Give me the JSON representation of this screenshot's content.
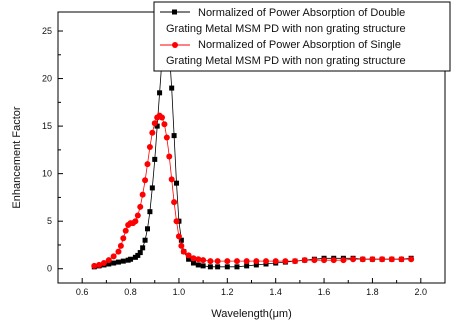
{
  "chart_data": {
    "type": "scatter",
    "title": "",
    "xlabel": "Wavelength(μm)",
    "ylabel": "Enhancement Factor",
    "xlim": [
      0.5,
      2.1
    ],
    "ylim": [
      -1.5,
      27
    ],
    "xticks": [
      0.6,
      0.8,
      1.0,
      1.2,
      1.4,
      1.6,
      1.8,
      2.0
    ],
    "xtick_labels": [
      "0.6",
      "0.8",
      "1.0",
      "1.2",
      "1.4",
      "1.6",
      "1.8",
      "2.0"
    ],
    "yticks": [
      0,
      5,
      10,
      15,
      20,
      25
    ],
    "ytick_labels": [
      "0",
      "5",
      "10",
      "15",
      "20",
      "25"
    ],
    "legend_position": "top-right",
    "grid": false,
    "series": [
      {
        "name_line1": "Normalized of Power Absorption of Double",
        "name_line2": "Grating Metal  MSM PD with non grating structure",
        "color": "#000000",
        "marker": "square",
        "x": [
          0.65,
          0.67,
          0.69,
          0.71,
          0.73,
          0.75,
          0.77,
          0.79,
          0.8,
          0.82,
          0.83,
          0.84,
          0.85,
          0.86,
          0.87,
          0.88,
          0.89,
          0.9,
          0.91,
          0.92,
          0.93,
          0.94,
          0.945,
          0.95,
          0.955,
          0.96,
          0.97,
          0.98,
          0.99,
          1.0,
          1.01,
          1.02,
          1.04,
          1.06,
          1.08,
          1.1,
          1.13,
          1.16,
          1.2,
          1.24,
          1.28,
          1.32,
          1.36,
          1.4,
          1.44,
          1.48,
          1.52,
          1.56,
          1.6,
          1.64,
          1.68,
          1.72,
          1.76,
          1.8,
          1.84,
          1.88,
          1.92,
          1.96
        ],
        "y": [
          0.2,
          0.3,
          0.4,
          0.5,
          0.6,
          0.7,
          0.8,
          0.9,
          1.0,
          1.2,
          1.4,
          1.7,
          2.2,
          3.0,
          4.2,
          6.0,
          8.5,
          11.5,
          15.0,
          18.5,
          22.0,
          24.3,
          25.0,
          24.8,
          24.0,
          22.8,
          19.0,
          14.0,
          9.0,
          5.0,
          3.0,
          1.8,
          1.0,
          0.6,
          0.4,
          0.3,
          0.2,
          0.2,
          0.2,
          0.2,
          0.3,
          0.4,
          0.5,
          0.6,
          0.7,
          0.8,
          0.9,
          1.0,
          1.1,
          1.1,
          1.1,
          1.1,
          1.0,
          1.0,
          1.0,
          1.0,
          1.0,
          1.1
        ]
      },
      {
        "name_line1": "Normalized of Power Absorption of Single",
        "name_line2": "Grating Metal  MSM PD with non grating structure",
        "color": "#ff0000",
        "marker": "circle",
        "x": [
          0.65,
          0.67,
          0.69,
          0.71,
          0.73,
          0.75,
          0.76,
          0.77,
          0.78,
          0.79,
          0.8,
          0.81,
          0.82,
          0.83,
          0.84,
          0.85,
          0.86,
          0.87,
          0.88,
          0.89,
          0.9,
          0.91,
          0.92,
          0.93,
          0.94,
          0.95,
          0.96,
          0.97,
          0.98,
          0.99,
          1.0,
          1.01,
          1.02,
          1.04,
          1.06,
          1.08,
          1.1,
          1.13,
          1.16,
          1.2,
          1.24,
          1.28,
          1.32,
          1.36,
          1.4,
          1.44,
          1.48,
          1.52,
          1.56,
          1.6,
          1.64,
          1.68,
          1.72,
          1.76,
          1.8,
          1.84,
          1.88,
          1.92,
          1.96
        ],
        "y": [
          0.3,
          0.4,
          0.6,
          0.9,
          1.3,
          1.8,
          2.4,
          3.2,
          4.0,
          4.6,
          4.8,
          4.8,
          5.0,
          5.6,
          6.5,
          7.8,
          9.3,
          11.0,
          12.8,
          14.3,
          15.3,
          15.9,
          16.1,
          15.9,
          15.2,
          13.8,
          11.8,
          9.4,
          7.0,
          5.0,
          3.4,
          2.4,
          1.8,
          1.4,
          1.1,
          1.0,
          0.9,
          0.8,
          0.8,
          0.8,
          0.8,
          0.8,
          0.8,
          0.8,
          0.8,
          0.8,
          0.8,
          0.9,
          0.9,
          0.9,
          0.9,
          0.9,
          1.0,
          1.0,
          1.0,
          1.0,
          1.0,
          1.0,
          1.0
        ]
      }
    ]
  }
}
